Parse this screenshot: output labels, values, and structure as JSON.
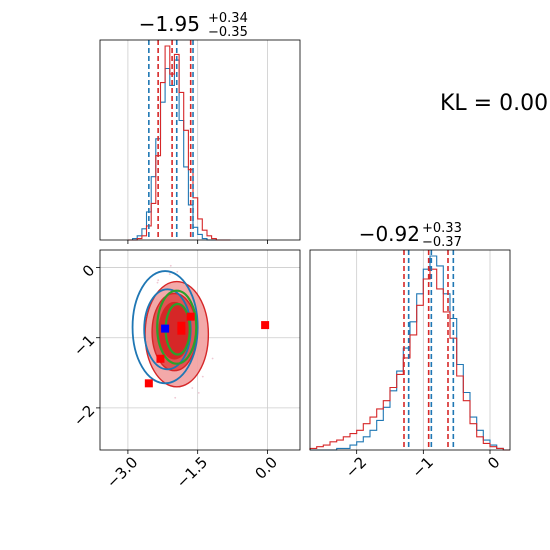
{
  "kl_text": "KL = 0.00",
  "colors": {
    "blue": "#1f77b4",
    "red": "#d62728",
    "green": "#2ca02c",
    "grid": "#cccccc",
    "red_fill": "#f2a0a0",
    "red_fill_dark": "#e04848",
    "red_core": "#d52222"
  },
  "chart_data": [
    {
      "type": "histogram",
      "panel": "marginal-x",
      "title": {
        "main": "−1.95",
        "plus": "+0.34",
        "minus": "−0.35"
      },
      "xlim": [
        -3.6,
        0.7
      ],
      "xticks": [
        -3.0,
        -1.5,
        0.0
      ],
      "blue_quantiles": [
        -2.55,
        -1.95,
        -1.6
      ],
      "red_quantiles": [
        -2.35,
        -2.05,
        -1.65
      ],
      "bins_x": [
        -3.0,
        -2.9,
        -2.8,
        -2.7,
        -2.6,
        -2.5,
        -2.4,
        -2.3,
        -2.2,
        -2.1,
        -2.0,
        -1.9,
        -1.8,
        -1.7,
        -1.6,
        -1.5,
        -1.4,
        -1.3,
        -1.2,
        -1.1,
        -1.0,
        -0.9
      ],
      "blue_counts": [
        0,
        1,
        3,
        8,
        20,
        45,
        72,
        98,
        122,
        110,
        128,
        85,
        52,
        25,
        9,
        4,
        1,
        0,
        0,
        0,
        0,
        0
      ],
      "red_counts": [
        0,
        0,
        1,
        3,
        10,
        26,
        60,
        112,
        138,
        118,
        132,
        105,
        78,
        50,
        30,
        15,
        7,
        3,
        1,
        0,
        0,
        0
      ]
    },
    {
      "type": "histogram",
      "panel": "marginal-y",
      "title": {
        "main": "−0.92",
        "plus": "+0.33",
        "minus": "−0.37"
      },
      "xlim": [
        -2.7,
        0.3
      ],
      "xticks": [
        -2,
        -1,
        0
      ],
      "blue_quantiles": [
        -1.22,
        -0.88,
        -0.55
      ],
      "red_quantiles": [
        -1.29,
        -0.92,
        -0.63
      ],
      "bins_x": [
        -2.7,
        -2.6,
        -2.5,
        -2.4,
        -2.3,
        -2.2,
        -2.1,
        -2.0,
        -1.9,
        -1.8,
        -1.7,
        -1.6,
        -1.5,
        -1.4,
        -1.3,
        -1.2,
        -1.1,
        -1.0,
        -0.9,
        -0.8,
        -0.7,
        -0.6,
        -0.5,
        -0.4,
        -0.3,
        -0.2,
        -0.1,
        0.0,
        0.1,
        0.2
      ],
      "blue_counts": [
        0,
        0,
        0,
        0,
        1,
        1,
        3,
        5,
        8,
        12,
        18,
        26,
        36,
        48,
        62,
        78,
        95,
        110,
        118,
        112,
        95,
        80,
        52,
        35,
        20,
        12,
        6,
        3,
        1,
        0
      ],
      "red_counts": [
        1,
        2,
        3,
        5,
        6,
        8,
        10,
        12,
        16,
        20,
        25,
        30,
        38,
        46,
        56,
        70,
        88,
        104,
        110,
        98,
        84,
        68,
        45,
        30,
        16,
        8,
        4,
        2,
        1,
        0
      ]
    },
    {
      "type": "scatter",
      "panel": "joint",
      "xlim": [
        -3.6,
        0.7
      ],
      "ylim": [
        -2.6,
        0.25
      ],
      "xticks": [
        -3.0,
        -1.5,
        0.0
      ],
      "yticks": [
        0,
        -1,
        -2
      ],
      "red_markers": [
        [
          -0.05,
          -0.82
        ],
        [
          -1.85,
          -0.83
        ],
        [
          -1.85,
          -0.9
        ],
        [
          -1.65,
          -0.7
        ],
        [
          -2.3,
          -1.3
        ],
        [
          -2.55,
          -1.65
        ]
      ],
      "blue_marker": [
        -2.2,
        -0.87
      ],
      "red_contour_levels": [
        {
          "cx": -1.95,
          "cy": -0.95,
          "rx": 0.68,
          "ry": 0.75,
          "fill": "red_fill"
        },
        {
          "cx": -2.0,
          "cy": -0.92,
          "rx": 0.48,
          "ry": 0.55,
          "fill": "red_fill_dark"
        },
        {
          "cx": -2.0,
          "cy": -0.9,
          "rx": 0.33,
          "ry": 0.4,
          "fill": "red_core"
        }
      ],
      "blue_contour_levels": [
        {
          "cx": -2.2,
          "cy": -0.85,
          "rx": 0.7,
          "ry": 0.8
        },
        {
          "cx": -2.15,
          "cy": -0.88,
          "rx": 0.5,
          "ry": 0.57
        }
      ],
      "green_contour_levels": [
        {
          "cx": -1.95,
          "cy": -0.85,
          "rx": 0.42,
          "ry": 0.52
        },
        {
          "cx": -1.93,
          "cy": -0.88,
          "rx": 0.26,
          "ry": 0.36
        }
      ]
    }
  ]
}
